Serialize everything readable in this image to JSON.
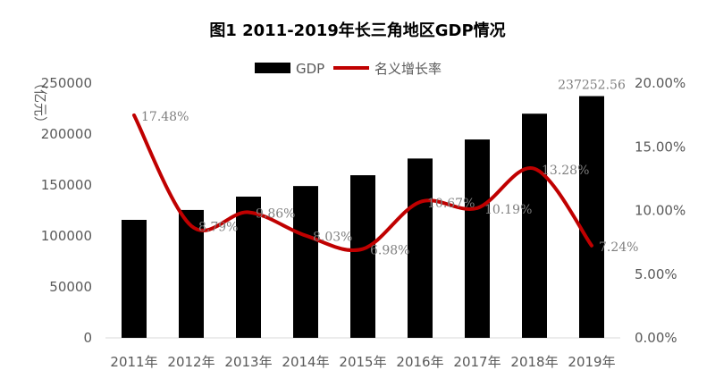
{
  "chart_data": {
    "type": "bar+line",
    "title": "图1   2011-2019年长三角地区GDP情况",
    "ylabel": "（亿元）",
    "categories": [
      "2011年",
      "2012年",
      "2013年",
      "2014年",
      "2015年",
      "2016年",
      "2017年",
      "2018年",
      "2019年"
    ],
    "left_axis": {
      "ylim": [
        0,
        250000
      ],
      "ticks": [
        "0",
        "50000",
        "100000",
        "150000",
        "200000",
        "250000"
      ]
    },
    "right_axis": {
      "ylim": [
        0,
        20
      ],
      "ticks": [
        "0.00%",
        "5.00%",
        "10.00%",
        "15.00%",
        "20.00%"
      ]
    },
    "series": [
      {
        "name": "GDP",
        "type": "bar",
        "color": "#000000",
        "axis": "left",
        "values": [
          115800,
          125500,
          138600,
          149000,
          159600,
          176000,
          194700,
          220000,
          237252.56
        ],
        "data_labels": {
          "8": "237252.56"
        }
      },
      {
        "name": "名义增长率",
        "type": "line",
        "color": "#c00000",
        "axis": "right",
        "values": [
          17.48,
          8.79,
          9.86,
          8.03,
          6.98,
          10.67,
          10.19,
          13.28,
          7.24
        ],
        "data_labels": [
          "17.48%",
          "8.79%",
          "9.86%",
          "8.03%",
          "6.98%",
          "10.67%",
          "10.19%",
          "13.28%",
          "7.24%"
        ]
      }
    ],
    "legend": "top-center",
    "grid": false
  }
}
